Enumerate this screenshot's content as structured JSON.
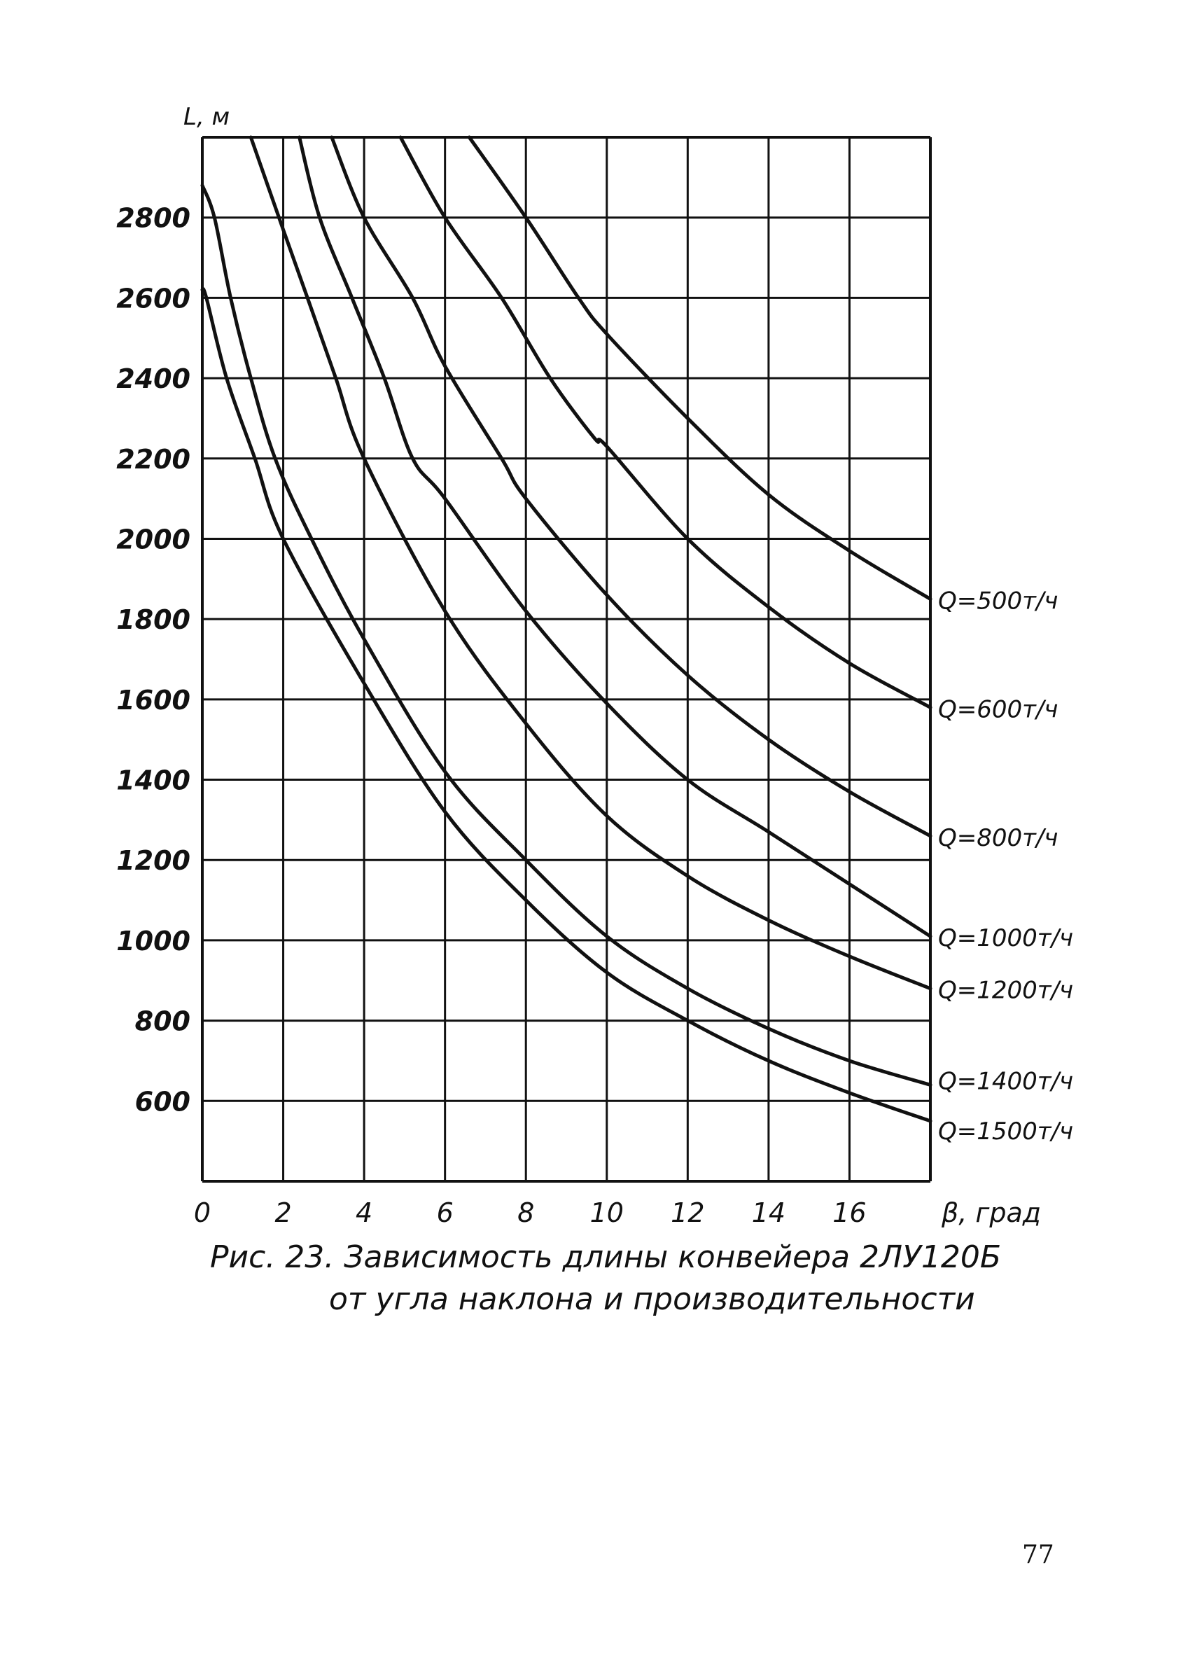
{
  "chart_data": {
    "type": "line",
    "title": "Рис. 23. Зависимость длины конвейера 2ЛУ120Б",
    "subtitle": "от угла наклона и производительности",
    "xlabel": "β, град",
    "ylabel": "L, м",
    "xlim": [
      0,
      18
    ],
    "ylim": [
      400,
      3000
    ],
    "grid": true,
    "x_ticks": [
      "0",
      "2",
      "4",
      "6",
      "8",
      "10",
      "12",
      "14",
      "16"
    ],
    "y_ticks": [
      "2800",
      "2600",
      "2400",
      "2200",
      "2000",
      "1800",
      "1600",
      "1400",
      "1200",
      "1000",
      "800",
      "600"
    ],
    "legend_placement": "right (inline labels at curve ends)",
    "series": [
      {
        "name": "Q=500т/ч",
        "points": [
          [
            6.6,
            3000
          ],
          [
            8,
            2800
          ],
          [
            9.3,
            2600
          ],
          [
            10,
            2510
          ],
          [
            12,
            2300
          ],
          [
            14,
            2110
          ],
          [
            16,
            1970
          ],
          [
            18,
            1850
          ]
        ]
      },
      {
        "name": "Q=600т/ч",
        "points": [
          [
            4.9,
            3000
          ],
          [
            6,
            2800
          ],
          [
            7.4,
            2600
          ],
          [
            8.6,
            2400
          ],
          [
            9.7,
            2250
          ],
          [
            10,
            2230
          ],
          [
            12,
            2000
          ],
          [
            14,
            1830
          ],
          [
            16,
            1690
          ],
          [
            18,
            1580
          ]
        ]
      },
      {
        "name": "Q=800т/ч",
        "points": [
          [
            3.2,
            3000
          ],
          [
            4,
            2800
          ],
          [
            5.2,
            2600
          ],
          [
            6,
            2430
          ],
          [
            7.4,
            2200
          ],
          [
            8,
            2100
          ],
          [
            10,
            1860
          ],
          [
            12,
            1660
          ],
          [
            14,
            1500
          ],
          [
            16,
            1370
          ],
          [
            18,
            1260
          ]
        ]
      },
      {
        "name": "Q=1000т/ч",
        "points": [
          [
            2.4,
            3000
          ],
          [
            2.9,
            2800
          ],
          [
            3.7,
            2600
          ],
          [
            4.5,
            2400
          ],
          [
            5.2,
            2200
          ],
          [
            6,
            2100
          ],
          [
            8,
            1820
          ],
          [
            10,
            1590
          ],
          [
            12,
            1400
          ],
          [
            14,
            1270
          ],
          [
            16,
            1140
          ],
          [
            18,
            1010
          ]
        ]
      },
      {
        "name": "Q=1200т/ч",
        "points": [
          [
            1.2,
            3000
          ],
          [
            2,
            2770
          ],
          [
            2.6,
            2600
          ],
          [
            3.3,
            2400
          ],
          [
            4,
            2200
          ],
          [
            6,
            1820
          ],
          [
            8,
            1540
          ],
          [
            10,
            1310
          ],
          [
            12,
            1160
          ],
          [
            14,
            1050
          ],
          [
            16,
            960
          ],
          [
            18,
            880
          ]
        ]
      },
      {
        "name": "Q=1400т/ч",
        "points": [
          [
            0,
            2880
          ],
          [
            0.3,
            2800
          ],
          [
            0.7,
            2600
          ],
          [
            1.2,
            2400
          ],
          [
            1.8,
            2200
          ],
          [
            2.7,
            2000
          ],
          [
            4,
            1750
          ],
          [
            6,
            1420
          ],
          [
            8,
            1200
          ],
          [
            10,
            1010
          ],
          [
            12,
            880
          ],
          [
            14,
            780
          ],
          [
            16,
            700
          ],
          [
            18,
            640
          ]
        ]
      },
      {
        "name": "Q=1500т/ч",
        "points": [
          [
            0,
            2620
          ],
          [
            0.1,
            2600
          ],
          [
            0.6,
            2400
          ],
          [
            1.3,
            2200
          ],
          [
            2,
            2000
          ],
          [
            4,
            1640
          ],
          [
            6,
            1320
          ],
          [
            8,
            1100
          ],
          [
            10,
            920
          ],
          [
            12,
            800
          ],
          [
            14,
            700
          ],
          [
            16,
            620
          ],
          [
            18,
            550
          ]
        ]
      }
    ]
  },
  "page_number": "77"
}
